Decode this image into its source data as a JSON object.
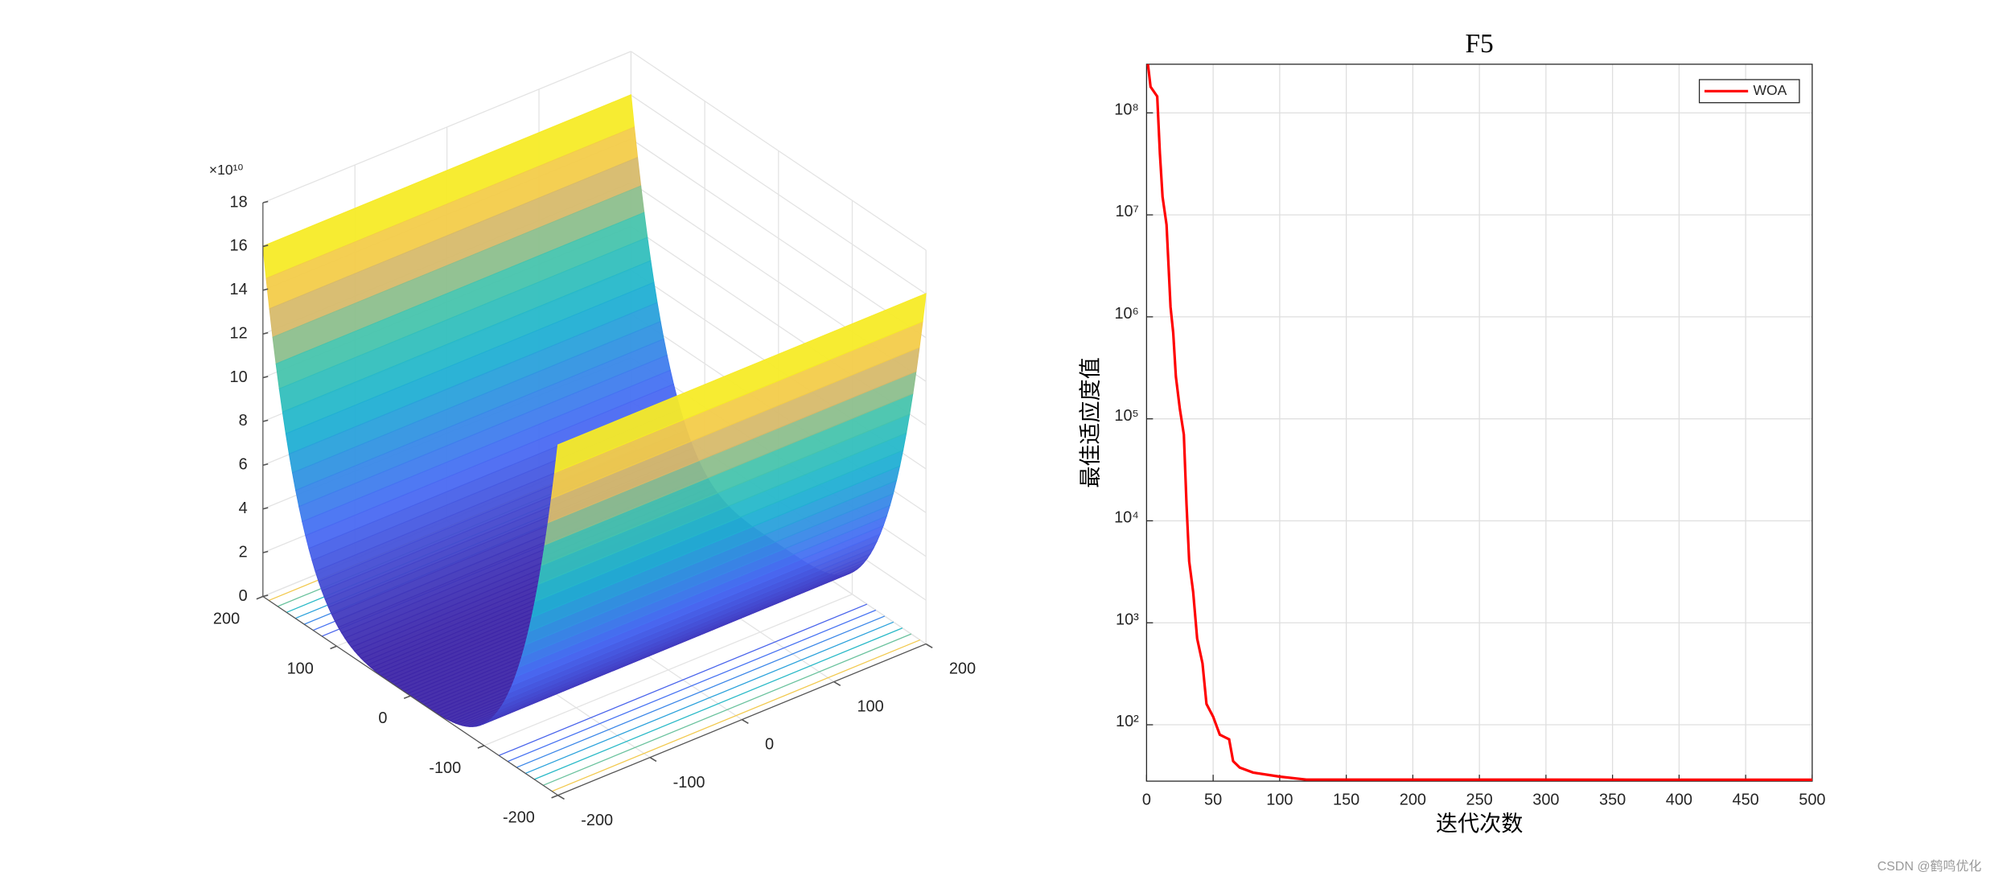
{
  "chart_data": [
    {
      "type": "surface3d",
      "zlabel_exponent": "×10¹⁰",
      "xlim": [
        -200,
        200
      ],
      "xticks": [
        -200,
        -100,
        0,
        100,
        200
      ],
      "ylim": [
        -200,
        200
      ],
      "yticks": [
        -200,
        -100,
        0,
        100,
        200
      ],
      "zlim": [
        0,
        18
      ],
      "zticks": [
        0,
        2,
        4,
        6,
        8,
        10,
        12,
        14,
        16,
        18
      ],
      "grid": true
    },
    {
      "type": "line",
      "title": "F5",
      "xlabel": "迭代次数",
      "ylabel": "最佳适应度值",
      "x": [
        1,
        3,
        8,
        10,
        12,
        15,
        18,
        20,
        22,
        25,
        28,
        30,
        32,
        35,
        38,
        42,
        45,
        50,
        55,
        62,
        65,
        70,
        80,
        100,
        120,
        500
      ],
      "series": [
        {
          "name": "WOA",
          "color": "#ff0000",
          "values": [
            300000000,
            180000000,
            145000000,
            40000000,
            15000000,
            8000000,
            1250000,
            700000,
            260000,
            125000,
            70000,
            14500,
            4000,
            2000,
            700,
            400,
            160,
            120,
            80,
            72,
            44,
            38,
            34,
            31,
            29,
            28.9
          ]
        }
      ],
      "xlim": [
        0,
        500
      ],
      "xticks": [
        0,
        50,
        100,
        150,
        200,
        250,
        300,
        350,
        400,
        450,
        500
      ],
      "ylim": [
        28,
        300000000
      ],
      "yticks": [
        {
          "value": 100,
          "label": "10²"
        },
        {
          "value": 1000,
          "label": "10³"
        },
        {
          "value": 10000,
          "label": "10⁴"
        },
        {
          "value": 100000,
          "label": "10⁵"
        },
        {
          "value": 1000000,
          "label": "10⁶"
        },
        {
          "value": 10000000,
          "label": "10⁷"
        },
        {
          "value": 100000000,
          "label": "10⁸"
        }
      ],
      "log_y": true,
      "grid": true,
      "legend": "top-right"
    }
  ],
  "watermark": "CSDN @鹤鸣优化"
}
